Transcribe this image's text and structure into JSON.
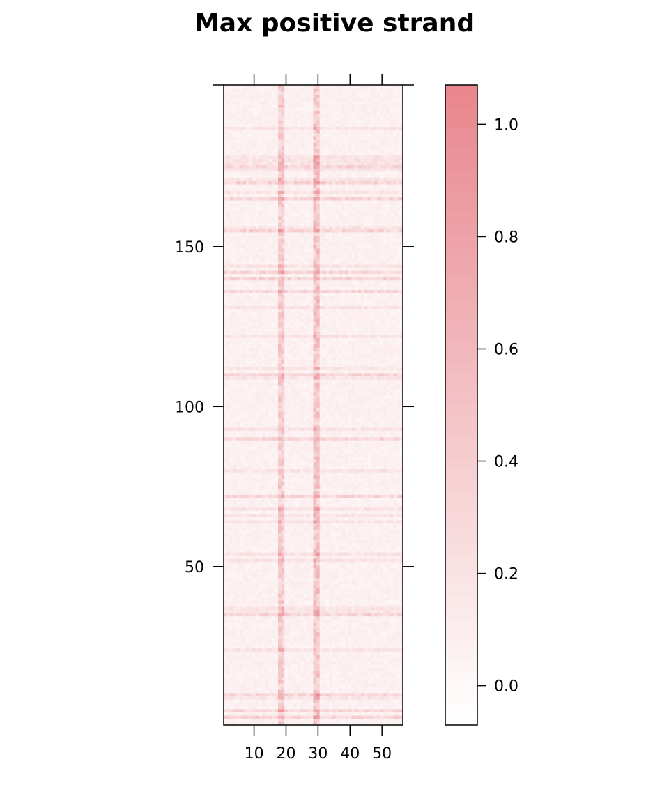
{
  "chart_data": {
    "type": "heatmap",
    "title": "Max positive strand",
    "xlabel": "",
    "ylabel": "",
    "x_range": [
      1,
      56
    ],
    "y_range": [
      1,
      200
    ],
    "x_ticks": [
      10,
      20,
      30,
      40,
      50
    ],
    "x_tick_labels": [
      "10",
      "20",
      "30",
      "40",
      "50"
    ],
    "y_ticks": [
      50,
      100,
      150
    ],
    "y_tick_labels": [
      "50",
      "100",
      "150"
    ],
    "color_scale": {
      "low_color": "#ffffff",
      "high_color": "#e8868c",
      "range": [
        -0.07,
        1.07
      ],
      "ticks": [
        0.0,
        0.2,
        0.4,
        0.6,
        0.8,
        1.0
      ],
      "tick_labels": [
        "0.0",
        "0.2",
        "0.4",
        "0.6",
        "0.8",
        "1.0"
      ]
    },
    "hot_columns": [
      {
        "column": 18,
        "mean_value": 0.45
      },
      {
        "column": 19,
        "mean_value": 0.42
      },
      {
        "column": 29,
        "mean_value": 0.5
      },
      {
        "column": 30,
        "mean_value": 0.5
      }
    ],
    "background_value": 0.08,
    "hot_rows": [
      175,
      170,
      165,
      155,
      142,
      140,
      136,
      110,
      90,
      72,
      35,
      10,
      5,
      3
    ],
    "grid": false,
    "legend_placement": "right"
  }
}
